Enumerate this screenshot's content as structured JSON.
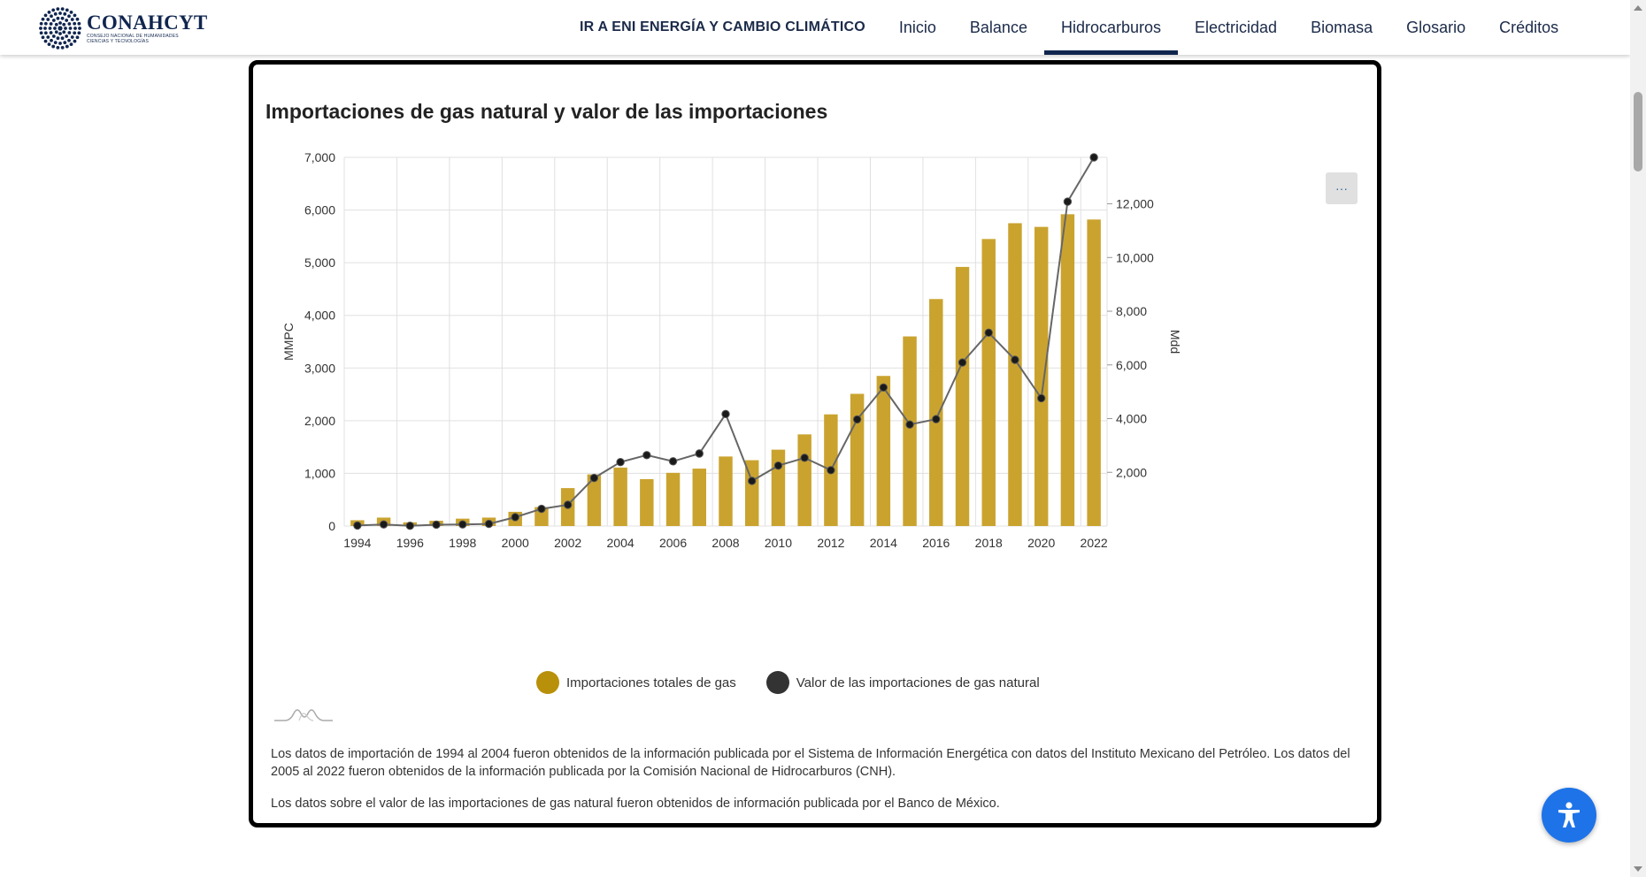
{
  "header": {
    "logo_title": "CONAHCYT",
    "logo_subtitle_line1": "CONSEJO NACIONAL DE HUMANIDADES",
    "logo_subtitle_line2": "CIENCIAS Y TECNOLOGÍAS",
    "nav": [
      {
        "label": "IR A ENI ENERGÍA Y CAMBIO CLIMÁTICO",
        "active": false
      },
      {
        "label": "Inicio",
        "active": false
      },
      {
        "label": "Balance",
        "active": false
      },
      {
        "label": "Hidrocarburos",
        "active": true
      },
      {
        "label": "Electricidad",
        "active": false
      },
      {
        "label": "Biomasa",
        "active": false
      },
      {
        "label": "Glosario",
        "active": false
      },
      {
        "label": "Créditos",
        "active": false
      }
    ]
  },
  "card": {
    "title": "Importaciones de gas natural y valor de las importaciones",
    "menu_label": "···",
    "note1": "Los datos de importación de 1994 al 2004 fueron obtenidos de la información publicada por el Sistema de Información Energética con datos del Instituto Mexicano del Petróleo. Los datos del 2005 al 2022 fueron obtenidos de la información publicada por la Comisión Nacional de Hidrocarburos (CNH).",
    "note2": "Los datos sobre el valor de las importaciones de gas natural fueron obtenidos de información publicada por el Banco de México."
  },
  "colors": {
    "bar": "#caa32f",
    "line": "#666666",
    "marker": "#1a1a1a",
    "legend_bar": "#b8900a",
    "legend_line": "#333333",
    "grid": "#e0e0e0",
    "brand": "#10264f",
    "accessibility": "#1e73e8"
  },
  "chart_data": {
    "type": "bar",
    "title": "Importaciones de gas natural y valor de las importaciones",
    "categories": [
      "1994",
      "1995",
      "1996",
      "1997",
      "1998",
      "1999",
      "2000",
      "2001",
      "2002",
      "2003",
      "2004",
      "2005",
      "2006",
      "2007",
      "2008",
      "2009",
      "2010",
      "2011",
      "2012",
      "2013",
      "2014",
      "2015",
      "2016",
      "2017",
      "2018",
      "2019",
      "2020",
      "2021",
      "2022"
    ],
    "x_tick_labels": [
      "1994",
      "1996",
      "1998",
      "2000",
      "2002",
      "2004",
      "2006",
      "2008",
      "2010",
      "2012",
      "2014",
      "2016",
      "2018",
      "2020",
      "2022"
    ],
    "series": [
      {
        "name": "Importaciones totales de gas",
        "type": "bar",
        "axis": "left",
        "values": [
          110,
          160,
          70,
          100,
          140,
          160,
          270,
          360,
          720,
          980,
          1110,
          890,
          1010,
          1090,
          1320,
          1250,
          1450,
          1740,
          2120,
          2510,
          2850,
          3600,
          4310,
          4920,
          5450,
          5750,
          5680,
          5920,
          5820
        ]
      },
      {
        "name": "Valor de las importaciones de gas natural",
        "type": "line",
        "axis": "right",
        "values": [
          20,
          60,
          10,
          50,
          60,
          80,
          330,
          640,
          790,
          1790,
          2380,
          2640,
          2410,
          2700,
          4170,
          1680,
          2250,
          2540,
          2080,
          3970,
          5160,
          3780,
          3980,
          6090,
          7200,
          6190,
          4760,
          12080,
          13730
        ]
      }
    ],
    "y_left": {
      "label": "MMPC",
      "min": 0,
      "max": 7000,
      "ticks": [
        "0",
        "1,000",
        "2,000",
        "3,000",
        "4,000",
        "5,000",
        "6,000",
        "7,000"
      ]
    },
    "y_right": {
      "label": "Mdd",
      "min": 0,
      "max": 13730,
      "ticks": [
        "2,000",
        "4,000",
        "6,000",
        "8,000",
        "10,000",
        "12,000"
      ],
      "tick_values": [
        2000,
        4000,
        6000,
        8000,
        10000,
        12000
      ]
    },
    "grid": true,
    "legend_position": "bottom-center"
  },
  "accessibility_icon": "accessibility-person-icon"
}
